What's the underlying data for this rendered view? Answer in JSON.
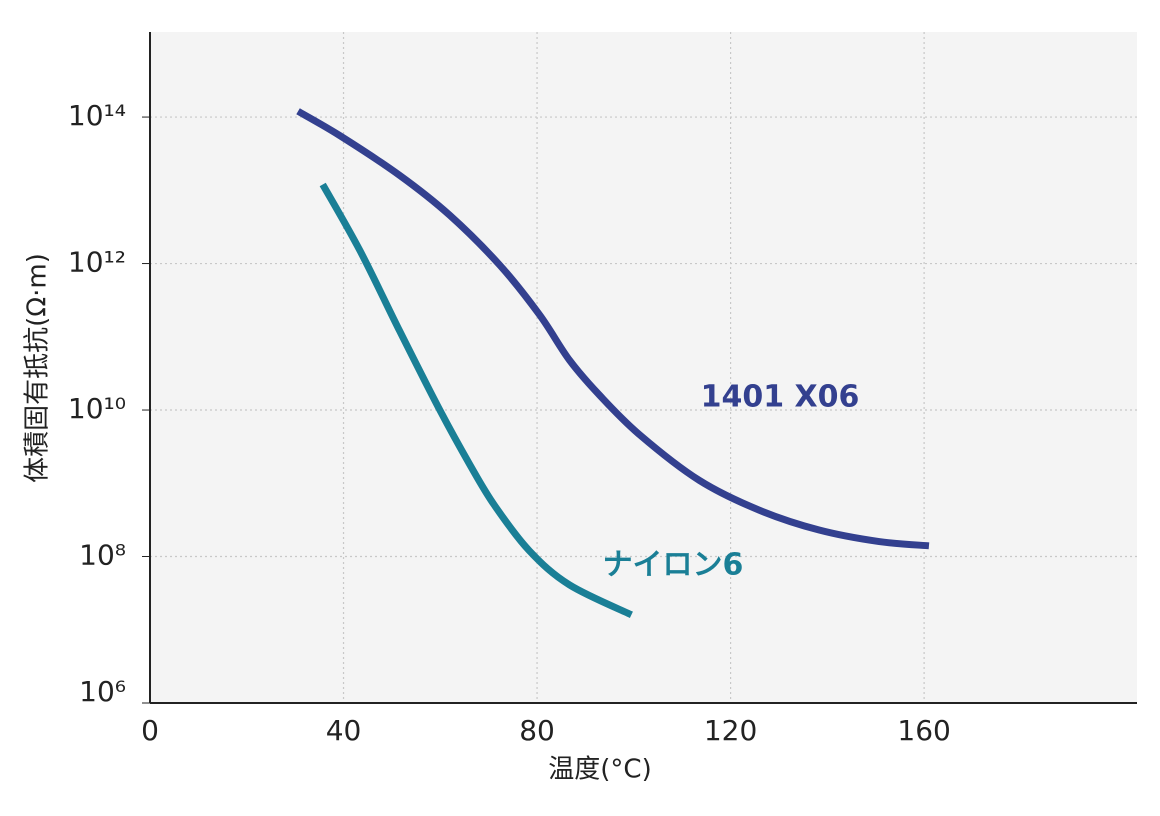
{
  "chart_data": {
    "type": "line",
    "x_label": "温度(°C)",
    "y_label": "体積固有抵抗(Ω·m)",
    "xlim": [
      0,
      204
    ],
    "xticks": [
      0,
      40,
      80,
      120,
      160
    ],
    "ylim": [
      1000000,
      1450000000000000
    ],
    "yticks": [
      {
        "value": 1000000,
        "label": "10⁶"
      },
      {
        "value": 100000000,
        "label": "10⁸"
      },
      {
        "value": 10000000000,
        "label": "10¹⁰"
      },
      {
        "value": 1000000000000,
        "label": "10¹²"
      },
      {
        "value": 100000000000000,
        "label": "10¹⁴"
      }
    ],
    "log_y": true,
    "grid": true,
    "series": [
      {
        "name": "1401 X06",
        "color": "#33408f",
        "x": [
          30.6,
          39.2,
          51.6,
          61.9,
          72.3,
          80.5,
          86.7,
          92.9,
          101.2,
          113.5,
          125.9,
          138.3,
          150.7,
          161.0
        ],
        "values": [
          120000000000000.0,
          56000000000000.0,
          16000000000000.0,
          4600000000000.0,
          950000000000.0,
          200000000000.0,
          48000000000.0,
          16000000000.0,
          4600000000.0,
          1100000000.0,
          430000000.0,
          230000000.0,
          160000000.0,
          140000000.0
        ]
      },
      {
        "name": "ナイロン6",
        "color": "#1a7f96",
        "x": [
          35.7,
          43.4,
          51.6,
          59.9,
          66.1,
          71.2,
          78.4,
          86.7,
          99.5
        ],
        "values": [
          12000000000000.0,
          1500000000000.0,
          120000000000.0,
          10000000000.0,
          1800000000.0,
          500000000.0,
          120000000.0,
          41000000.0,
          16000000.0
        ]
      }
    ]
  }
}
